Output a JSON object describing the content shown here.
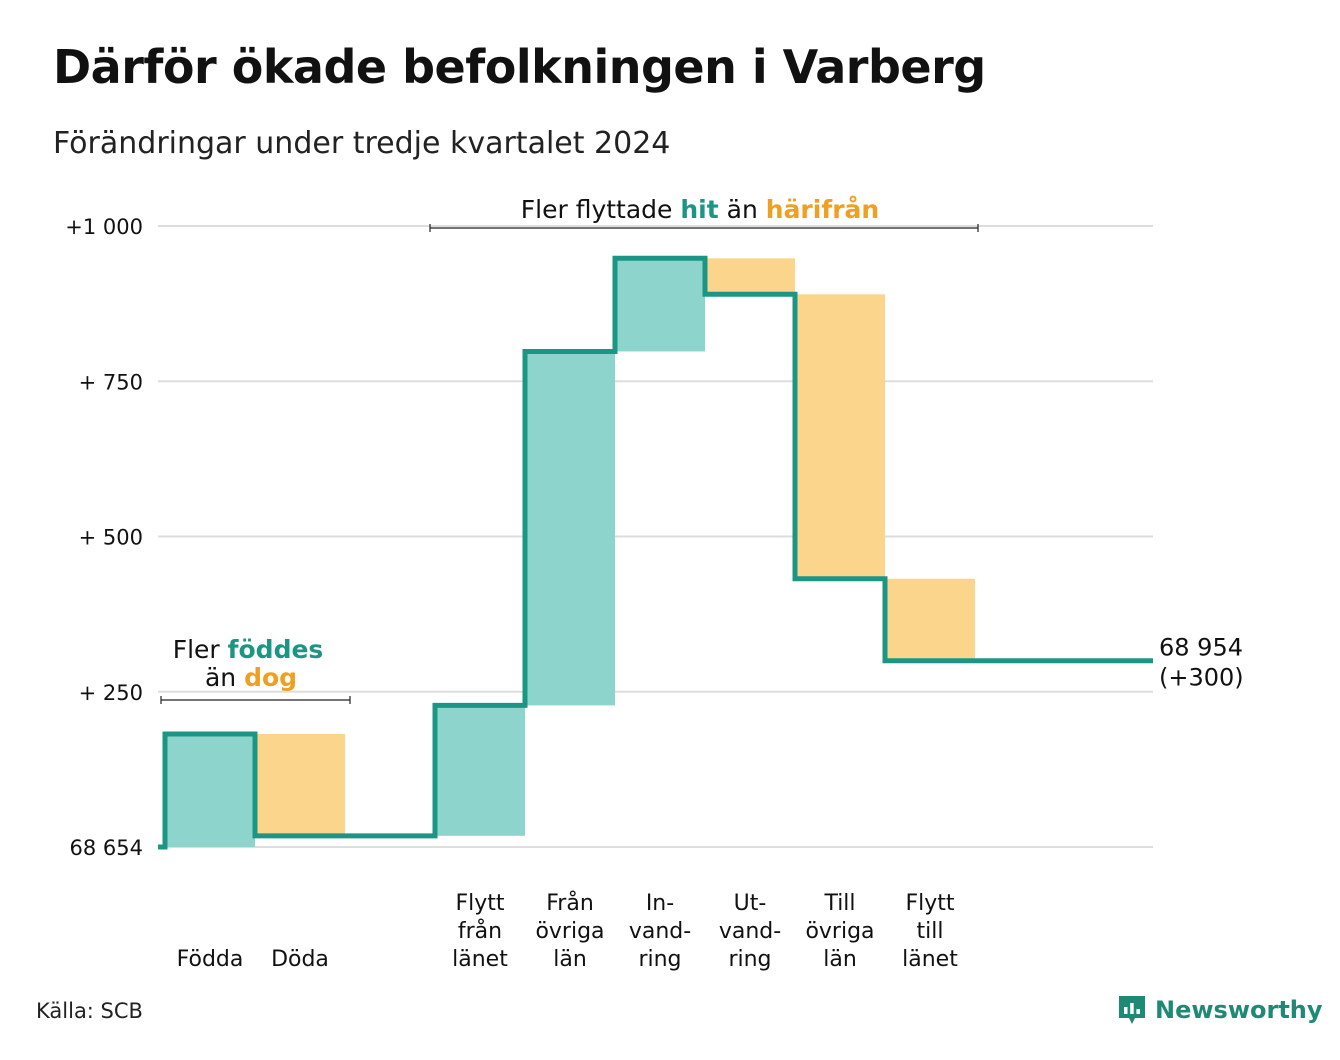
{
  "title": "Därför ökade befolkningen i Varberg",
  "subtitle": "Förändringar under tredje kvartalet 2024",
  "source": "Källa: SCB",
  "brand": "Newsworthy",
  "colors": {
    "increase": "#8dd5cc",
    "decrease": "#fad58b",
    "line": "#1b9684",
    "teal_text": "#1b9684",
    "orange_text": "#f0a020",
    "grid": "#dddddd"
  },
  "chart_data": {
    "type": "waterfall",
    "start": {
      "label": "68 654",
      "value": 0
    },
    "end": {
      "label": "68 954",
      "change_label": "(+300)",
      "value": 300
    },
    "y_ticks": [
      {
        "value": 0,
        "label": "68 654"
      },
      {
        "value": 250,
        "label": "+  250"
      },
      {
        "value": 500,
        "label": "+  500"
      },
      {
        "value": 750,
        "label": "+  750"
      },
      {
        "value": 1000,
        "label": "+1 000"
      }
    ],
    "ylim": [
      0,
      1000
    ],
    "steps": [
      {
        "label": [
          "Födda"
        ],
        "change": 182,
        "kind": "increase"
      },
      {
        "label": [
          "Döda"
        ],
        "change": -164,
        "kind": "decrease"
      },
      {
        "label": [
          "Flytt",
          "från",
          "länet"
        ],
        "change": 210,
        "kind": "increase"
      },
      {
        "label": [
          "Från",
          "övriga",
          "län"
        ],
        "change": 570,
        "kind": "increase"
      },
      {
        "label": [
          "In-",
          "vand-",
          "ring"
        ],
        "change": 150,
        "kind": "increase"
      },
      {
        "label": [
          "Ut-",
          "vand-",
          "ring"
        ],
        "change": -58,
        "kind": "decrease"
      },
      {
        "label": [
          "Till",
          "övriga",
          "län"
        ],
        "change": -458,
        "kind": "decrease"
      },
      {
        "label": [
          "Flytt",
          "till",
          "länet"
        ],
        "change": -132,
        "kind": "decrease"
      }
    ],
    "annotations": {
      "birth": {
        "line1_prefix": "Fler ",
        "line1_highlight": "föddes",
        "line2_prefix": "än ",
        "line2_highlight": "dog"
      },
      "migration": {
        "prefix": "Fler flyttade ",
        "highlight1": "hit",
        "middle": " än ",
        "highlight2": "härifrån"
      }
    }
  }
}
